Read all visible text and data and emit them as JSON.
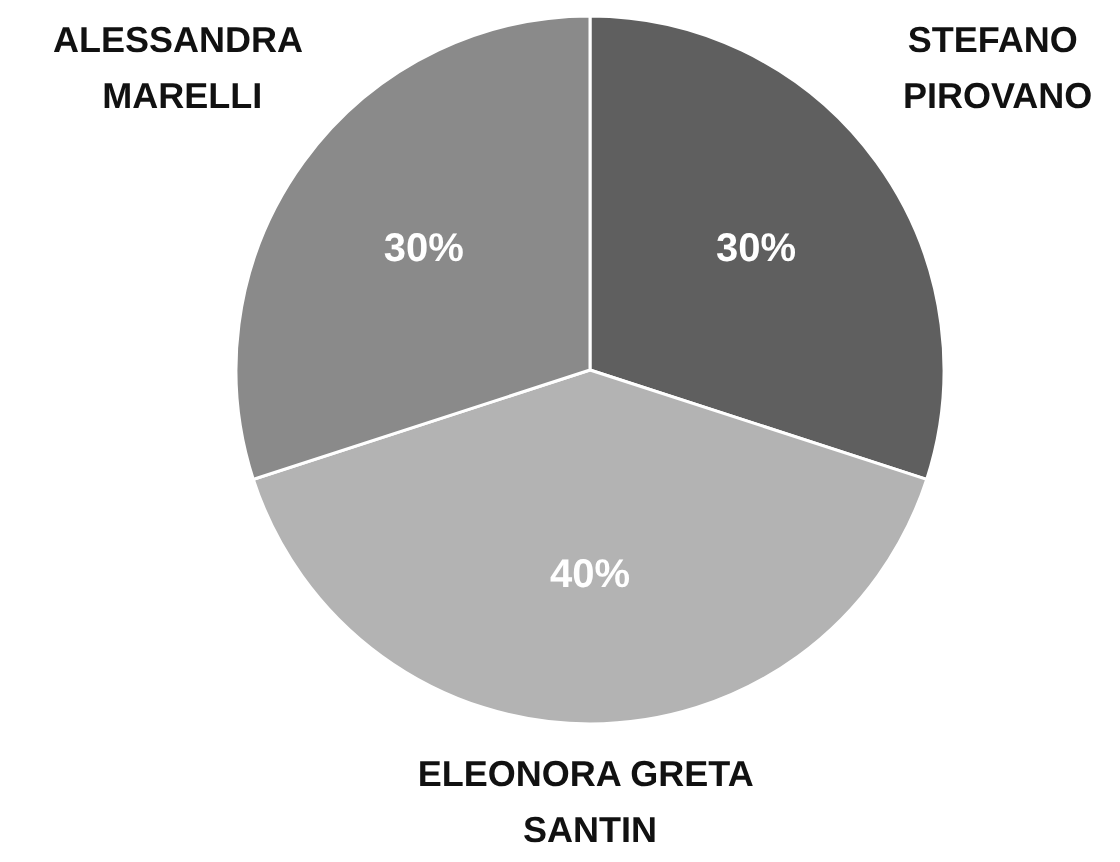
{
  "chart_data": {
    "type": "pie",
    "categories": [
      "STEFANO PIROVANO",
      "ELEONORA GRETA SANTIN",
      "ALESSANDRA MARELLI"
    ],
    "values": [
      30,
      40,
      30
    ],
    "colors": [
      "#5f5f5f",
      "#b3b3b3",
      "#8a8a8a"
    ],
    "value_labels": [
      "30%",
      "40%",
      "30%"
    ]
  }
}
